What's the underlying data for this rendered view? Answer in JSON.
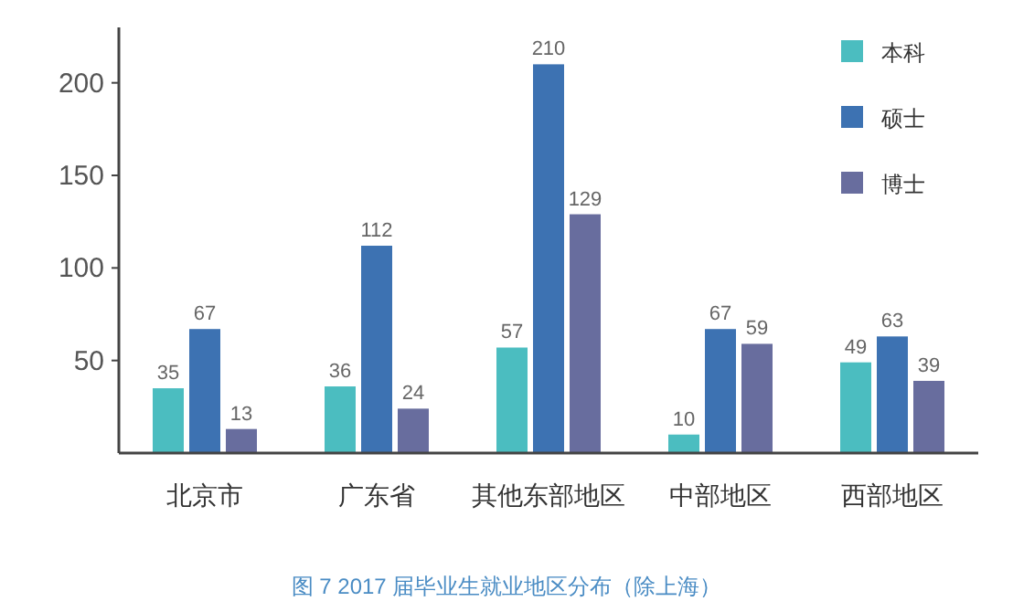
{
  "chart_data": {
    "type": "bar",
    "title": "图 7  2017 届毕业生就业地区分布（除上海）",
    "categories": [
      "北京市",
      "广东省",
      "其他东部地区",
      "中部地区",
      "西部地区"
    ],
    "series": [
      {
        "name": "本科",
        "color": "#4bbdc0",
        "values": [
          35,
          36,
          57,
          10,
          49
        ]
      },
      {
        "name": "硕士",
        "color": "#3d72b2",
        "values": [
          67,
          112,
          210,
          67,
          63
        ]
      },
      {
        "name": "博士",
        "color": "#686d9e",
        "values": [
          13,
          24,
          129,
          59,
          39
        ]
      }
    ],
    "ylim": [
      0,
      225
    ],
    "yticks": [
      50,
      100,
      150,
      200
    ],
    "grid": false,
    "legend": "top right",
    "data_labels": true
  }
}
